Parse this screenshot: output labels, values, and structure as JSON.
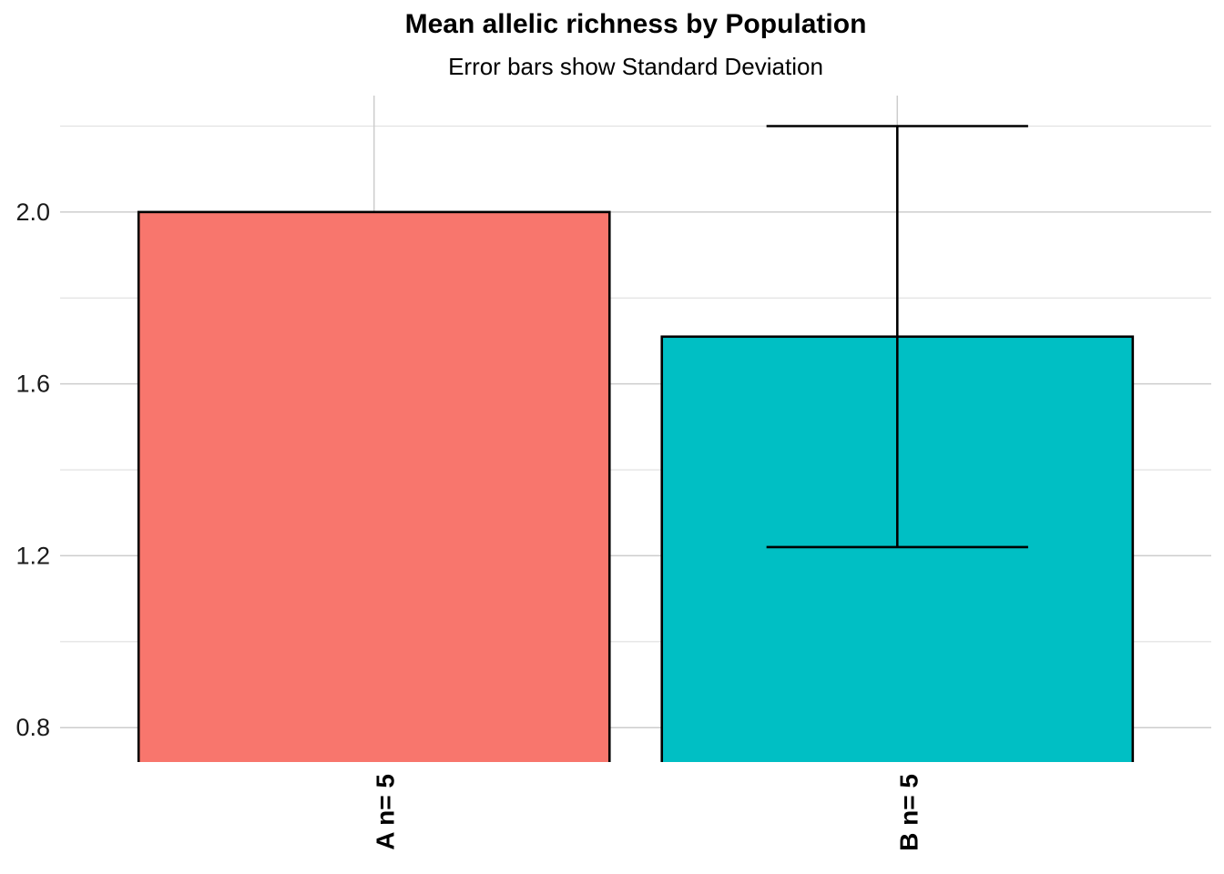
{
  "chart_data": {
    "type": "bar",
    "title": "Mean allelic richness by Population",
    "subtitle": "Error bars show Standard Deviation",
    "xlabel": "",
    "ylabel": "",
    "categories": [
      "A",
      "B"
    ],
    "x_tick_labels": [
      "A n= 5",
      "B n= 5"
    ],
    "n_per_group": [
      5,
      5
    ],
    "series": [
      {
        "name": "Mean allelic richness",
        "values": [
          2.0,
          1.71
        ],
        "sd": [
          0.0,
          0.49
        ]
      }
    ],
    "bar_colors": [
      "#F8766D",
      "#00BFC4"
    ],
    "bar_border_color": "#000000",
    "error_bar_color": "#000000",
    "ylim": [
      0.722,
      2.271
    ],
    "y_major_ticks": [
      0.8,
      1.2,
      1.6,
      2.0
    ],
    "y_major_tick_labels": [
      "0.8",
      "1.2",
      "1.6",
      "2.0"
    ],
    "y_minor_ticks": [
      1.0,
      1.4,
      1.8,
      2.2
    ],
    "grid": {
      "show": true,
      "major_color": "#CDCDCD",
      "minor_color": "#DFDFDF",
      "background": "#FFFFFF"
    },
    "legend_position": "none"
  }
}
